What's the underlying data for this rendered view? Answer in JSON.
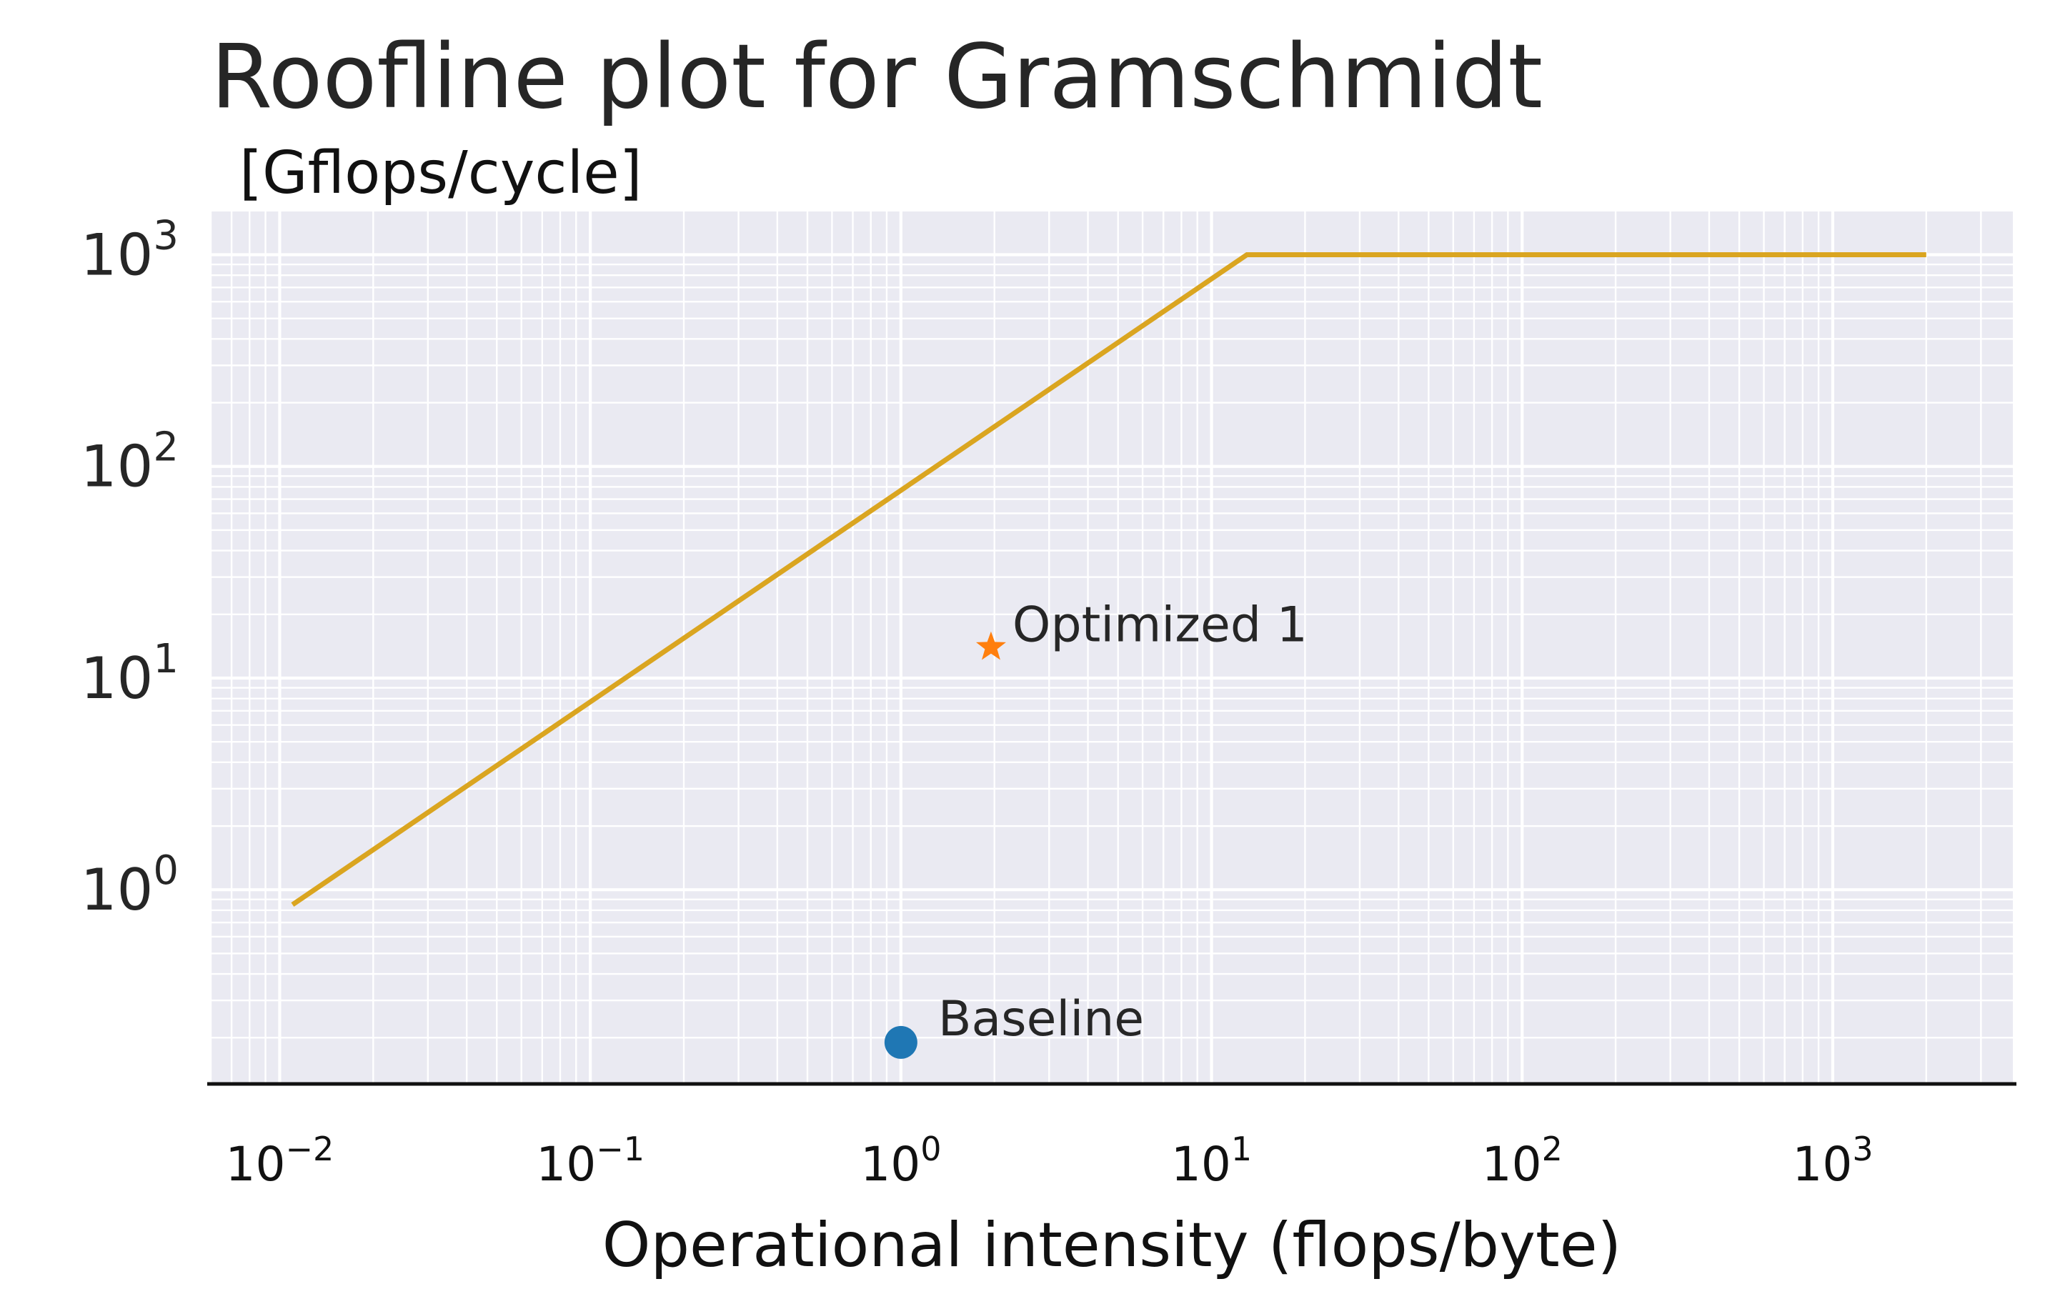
{
  "chart_data": {
    "type": "line",
    "title": "Roofline plot for Gramschmidt",
    "ylabel": "[Gflops/cycle]",
    "xlabel": "Operational intensity (flops/byte)",
    "xscale": "log",
    "yscale": "log",
    "xlim": [
      0.006,
      3800
    ],
    "ylim": [
      0.12,
      1600
    ],
    "x_ticks": [
      {
        "value": 0.01,
        "base": "10",
        "exp": "−2"
      },
      {
        "value": 0.1,
        "base": "10",
        "exp": "−1"
      },
      {
        "value": 1,
        "base": "10",
        "exp": "0"
      },
      {
        "value": 10,
        "base": "10",
        "exp": "1"
      },
      {
        "value": 100,
        "base": "10",
        "exp": "2"
      },
      {
        "value": 1000,
        "base": "10",
        "exp": "3"
      }
    ],
    "y_ticks": [
      {
        "value": 1,
        "base": "10",
        "exp": "0"
      },
      {
        "value": 10,
        "base": "10",
        "exp": "1"
      },
      {
        "value": 100,
        "base": "10",
        "exp": "2"
      },
      {
        "value": 1000,
        "base": "10",
        "exp": "3"
      }
    ],
    "grid": true,
    "legend": "none",
    "series": [
      {
        "type": "line",
        "color": "#daa520",
        "x": [
          0.011,
          13,
          2000
        ],
        "y": [
          0.85,
          1000,
          1000
        ]
      },
      {
        "type": "scatter",
        "name": "Baseline",
        "marker": "circle",
        "color": "#1f77b4",
        "x": [
          1.0
        ],
        "y": [
          0.19
        ]
      },
      {
        "type": "scatter",
        "name": "Optimized 1",
        "marker": "star",
        "color": "#ff7f0e",
        "x": [
          1.95
        ],
        "y": [
          14
        ]
      }
    ],
    "annotations": [
      {
        "text": "Baseline",
        "x": 1.0,
        "y": 0.19
      },
      {
        "text": "Optimized 1",
        "x": 1.95,
        "y": 14
      }
    ]
  }
}
